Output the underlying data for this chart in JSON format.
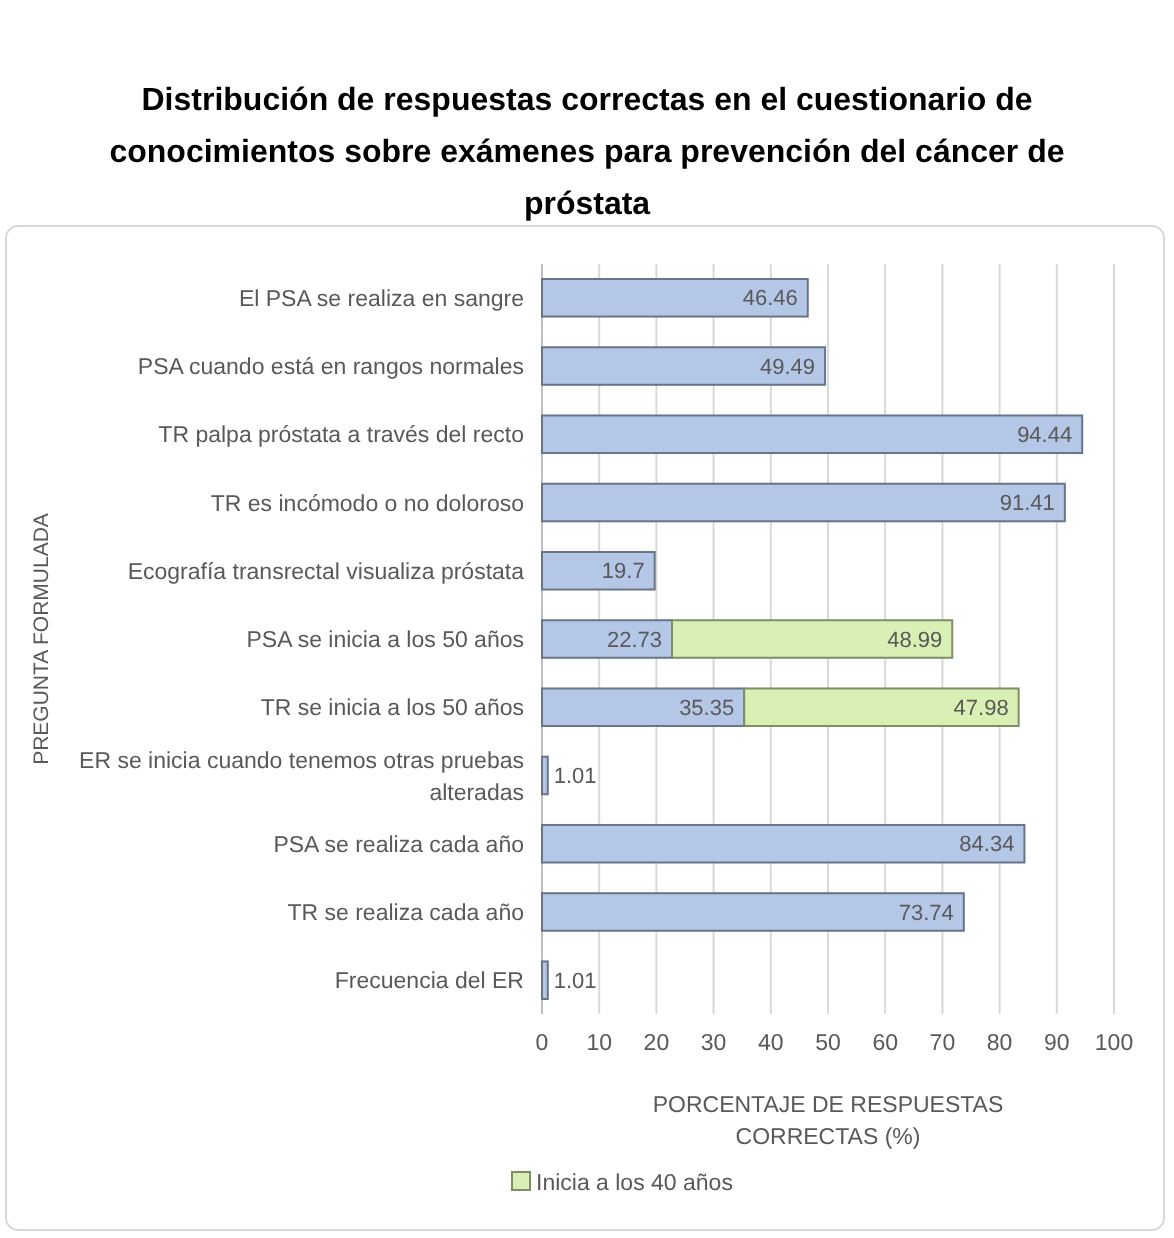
{
  "chart_data": {
    "type": "bar",
    "orientation": "horizontal",
    "stacked": true,
    "title": "Distribución de respuestas correctas en el cuestionario de conocimientos sobre exámenes para prevención del cáncer de próstata",
    "categories": [
      "El PSA se realiza en sangre",
      "PSA cuando está en rangos normales",
      "TR palpa próstata a través del recto",
      "TR es incómodo o no doloroso",
      "Ecografía transrectal visualiza próstata",
      "PSA se inicia a los 50 años",
      "TR se inicia a los 50 años",
      "ER se inicia cuando tenemos otras pruebas alteradas",
      "PSA se realiza cada año",
      "TR se realiza cada año",
      "Frecuencia del ER"
    ],
    "series": [
      {
        "color": "#b4c7e7",
        "values": [
          46.46,
          49.49,
          94.44,
          91.41,
          19.7,
          22.73,
          35.35,
          1.01,
          84.34,
          73.74,
          1.01
        ]
      },
      {
        "name": "Inicia a los 40 años",
        "color": "#d8f0b4",
        "values": [
          null,
          null,
          null,
          null,
          null,
          48.99,
          47.98,
          null,
          null,
          null,
          null
        ]
      }
    ],
    "xlim": [
      0,
      100
    ],
    "xticks": [
      0,
      10,
      20,
      30,
      40,
      50,
      60,
      70,
      80,
      90,
      100
    ],
    "grid": "x",
    "data_labels": true,
    "legend": "bottom left",
    "xlabel": "PORCENTAJE DE RESPUESTAS CORRECTAS (%)",
    "ylabel": "PREGUNTA FORMULADA"
  }
}
